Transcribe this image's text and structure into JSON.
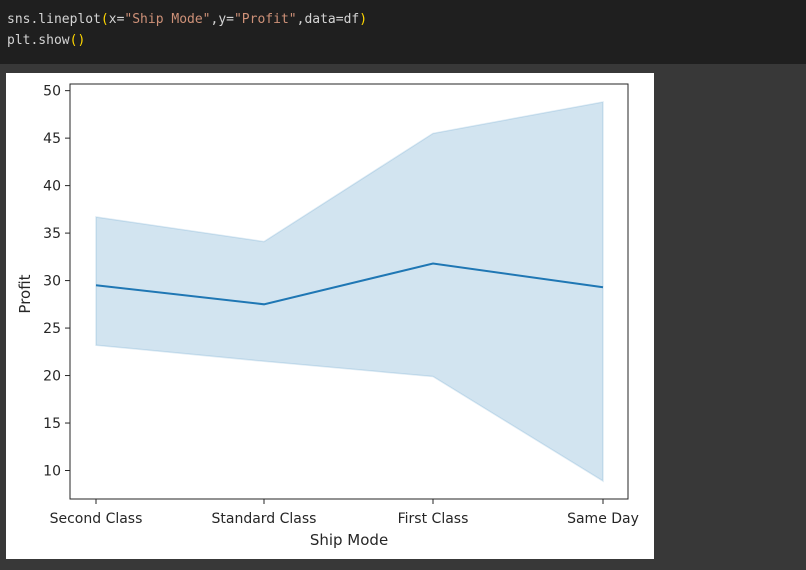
{
  "code": {
    "line1": {
      "prefix": "sns.lineplot",
      "open": "(",
      "arg1_key": "x=",
      "arg1_val": "\"Ship Mode\"",
      "comma1": ",",
      "arg2_key": "y=",
      "arg2_val": "\"Profit\"",
      "comma2": ",",
      "arg3": "data=df",
      "close": ")"
    },
    "line2": {
      "prefix": "plt.show",
      "open": "(",
      "close": ")"
    }
  },
  "chart_data": {
    "type": "line",
    "title": "",
    "xlabel": "Ship Mode",
    "ylabel": "Profit",
    "categories": [
      "Second Class",
      "Standard Class",
      "First Class",
      "Same Day"
    ],
    "series": [
      {
        "values": [
          29.5,
          27.5,
          31.8,
          29.3
        ],
        "ci_lower": [
          23.2,
          21.5,
          19.9,
          8.9
        ],
        "ci_upper": [
          36.7,
          34.1,
          45.5,
          48.8
        ]
      }
    ],
    "ylim": [
      7.0,
      50.7
    ],
    "yticks": [
      10,
      15,
      20,
      25,
      30,
      35,
      40,
      45,
      50
    ],
    "line_color": "#1f77b4",
    "band_color": "#1f77b4",
    "grid": false
  }
}
